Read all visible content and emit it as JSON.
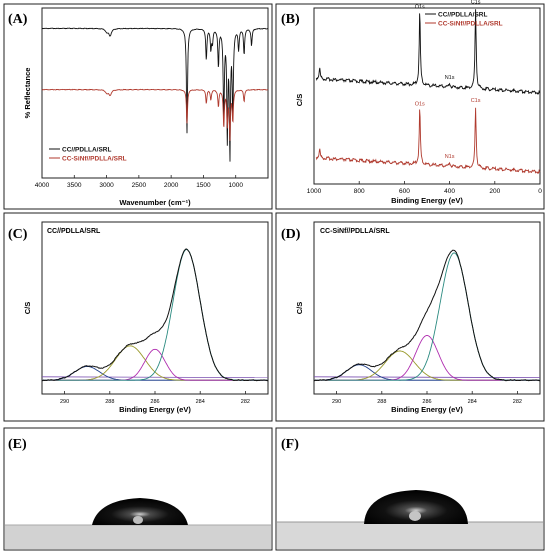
{
  "chart_data": [
    {
      "panel": "(A)",
      "type": "line",
      "xlabel": "Wavenumber (cm⁻¹)",
      "ylabel": "% Reflectance",
      "xlim": [
        4000,
        500
      ],
      "xticks": [
        4000,
        3500,
        3000,
        2500,
        2000,
        1500,
        1000
      ],
      "legend": [
        "CC//PDLLA/SRL",
        "CC-SiNf//PDLLA/SRL"
      ],
      "legend_position": "bottom-left",
      "series": [
        {
          "name": "CC//PDLLA/SRL",
          "color": "#111111",
          "baseline": 0.88,
          "peaks": [
            [
              2995,
              0.02
            ],
            [
              2945,
              0.04
            ],
            [
              1755,
              0.62
            ],
            [
              1455,
              0.18
            ],
            [
              1385,
              0.12
            ],
            [
              1360,
              0.08
            ],
            [
              1268,
              0.22
            ],
            [
              1185,
              0.55
            ],
            [
              1130,
              0.62
            ],
            [
              1090,
              0.72
            ],
            [
              1045,
              0.52
            ],
            [
              955,
              0.12
            ],
            [
              870,
              0.15
            ],
            [
              755,
              0.1
            ]
          ]
        },
        {
          "name": "CC-SiNf//PDLLA/SRL",
          "color": "#b03a2e",
          "baseline": 0.52,
          "peaks": [
            [
              2995,
              0.02
            ],
            [
              2945,
              0.03
            ],
            [
              1755,
              0.2
            ],
            [
              1455,
              0.08
            ],
            [
              1385,
              0.06
            ],
            [
              1268,
              0.1
            ],
            [
              1185,
              0.22
            ],
            [
              1130,
              0.2
            ],
            [
              1090,
              0.28
            ],
            [
              1045,
              0.18
            ],
            [
              870,
              0.07
            ]
          ]
        }
      ]
    },
    {
      "panel": "(B)",
      "type": "line",
      "xlabel": "Binding Energy (eV)",
      "ylabel": "C/S",
      "xlim": [
        1000,
        0
      ],
      "xticks": [
        1000,
        800,
        600,
        400,
        200,
        0
      ],
      "legend": [
        "CC//PDLLA/SRL",
        "CC-SiNf//PDLLA/SRL"
      ],
      "legend_position": "top-right",
      "annotations": [
        {
          "text": "O1s",
          "x": 532,
          "series": 0
        },
        {
          "text": "C1s",
          "x": 285,
          "series": 0
        },
        {
          "text": "N1s",
          "x": 400,
          "series": 0
        },
        {
          "text": "O1s",
          "x": 532,
          "series": 1
        },
        {
          "text": "C1s",
          "x": 285,
          "series": 1
        },
        {
          "text": "N1s",
          "x": 400,
          "series": 1
        }
      ],
      "series": [
        {
          "name": "CC//PDLLA/SRL",
          "color": "#111111",
          "offset": 0.5,
          "peaks": [
            [
              975,
              0.06
            ],
            [
              532,
              0.42
            ],
            [
              400,
              0.02
            ],
            [
              285,
              0.45
            ]
          ]
        },
        {
          "name": "CC-SiNf//PDLLA/SRL",
          "color": "#b03a2e",
          "offset": 0.05,
          "peaks": [
            [
              975,
              0.05
            ],
            [
              532,
              0.32
            ],
            [
              400,
              0.02
            ],
            [
              285,
              0.34
            ]
          ]
        }
      ]
    },
    {
      "panel": "(C)",
      "type": "line",
      "title": "CC//PDLLA/SRL",
      "xlabel": "Binding Energy (eV)",
      "ylabel": "C/S",
      "xlim": [
        291,
        281
      ],
      "xticks": [
        290,
        288,
        286,
        284,
        282
      ],
      "components": [
        {
          "center": 289.0,
          "height": 0.08,
          "width": 0.55,
          "color": "#1f3f8a"
        },
        {
          "center": 287.1,
          "height": 0.2,
          "width": 0.65,
          "color": "#9a9a2c"
        },
        {
          "center": 286.0,
          "height": 0.18,
          "width": 0.45,
          "color": "#b02fb0"
        },
        {
          "center": 284.6,
          "height": 0.76,
          "width": 0.6,
          "color": "#2a8a80"
        }
      ],
      "envelope_color": "#111111"
    },
    {
      "panel": "(D)",
      "type": "line",
      "title": "CC-SiNf//PDLLA/SRL",
      "xlabel": "Binding Energy (eV)",
      "ylabel": "C/S",
      "xlim": [
        291,
        281
      ],
      "xticks": [
        290,
        288,
        286,
        284,
        282
      ],
      "components": [
        {
          "center": 289.0,
          "height": 0.09,
          "width": 0.55,
          "color": "#1f3f8a"
        },
        {
          "center": 287.2,
          "height": 0.17,
          "width": 0.65,
          "color": "#9a9a2c"
        },
        {
          "center": 286.0,
          "height": 0.26,
          "width": 0.5,
          "color": "#b02fb0"
        },
        {
          "center": 284.8,
          "height": 0.74,
          "width": 0.62,
          "color": "#2a8a80"
        }
      ],
      "envelope_color": "#111111"
    }
  ],
  "images": [
    {
      "panel": "(E)",
      "subject": "water droplet contact angle"
    },
    {
      "panel": "(F)",
      "subject": "water droplet contact angle"
    }
  ]
}
